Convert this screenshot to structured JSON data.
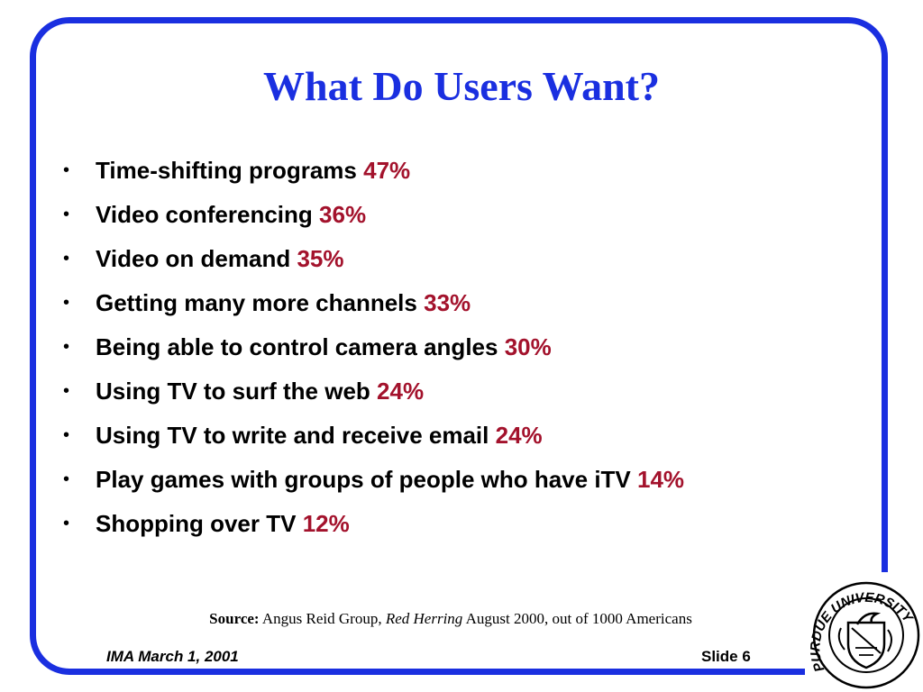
{
  "title": "What Do Users Want?",
  "bullets": [
    {
      "text": "Time-shifting programs",
      "pct": "47%"
    },
    {
      "text": "Video conferencing",
      "pct": "36%"
    },
    {
      "text": "Video on demand",
      "pct": "35%"
    },
    {
      "text": "Getting many more channels",
      "pct": "33%"
    },
    {
      "text": "Being able to control camera angles",
      "pct": "30%"
    },
    {
      "text": "Using TV to surf the web",
      "pct": "24%"
    },
    {
      "text": "Using TV to write and receive email",
      "pct": "24%"
    },
    {
      "text": "Play games with groups of people who have iTV",
      "pct": "14%"
    },
    {
      "text": "Shopping over TV",
      "pct": "12%"
    }
  ],
  "source": {
    "label": "Source:",
    "text1": "Angus Reid Group,",
    "publication": "Red Herring",
    "text2": "August 2000, out of 1000 Americans"
  },
  "footer": {
    "left": "IMA March 1, 2001",
    "right": "Slide 6"
  },
  "logo": {
    "name": "purdue-university-seal",
    "text": "PURDUE UNIVERSITY"
  },
  "colors": {
    "accent": "#1a2fe0",
    "percent": "#a3122c"
  }
}
